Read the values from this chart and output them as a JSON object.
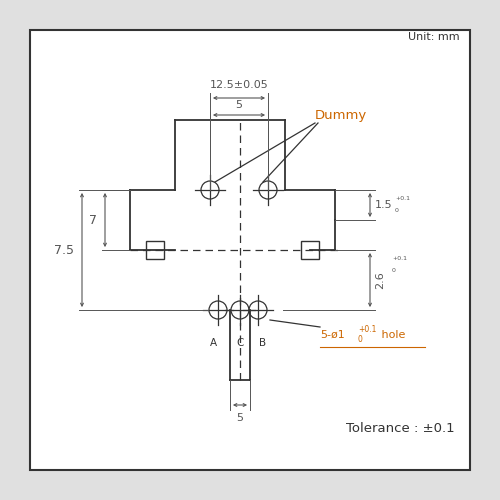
{
  "bg_color": "#e0e0e0",
  "box_color": "#ffffff",
  "line_color": "#333333",
  "dim_color": "#555555",
  "dummy_color": "#cc6600",
  "hole_color": "#cc6600",
  "title_text": "Unit: mm",
  "tolerance_text": "Tolerance : ±0.1",
  "dummy_label": "Dummy",
  "dim_125": "12.5±0.05",
  "dim_5_top": "5",
  "dim_7": "7",
  "dim_75": "7.5",
  "dim_5_bot": "5"
}
